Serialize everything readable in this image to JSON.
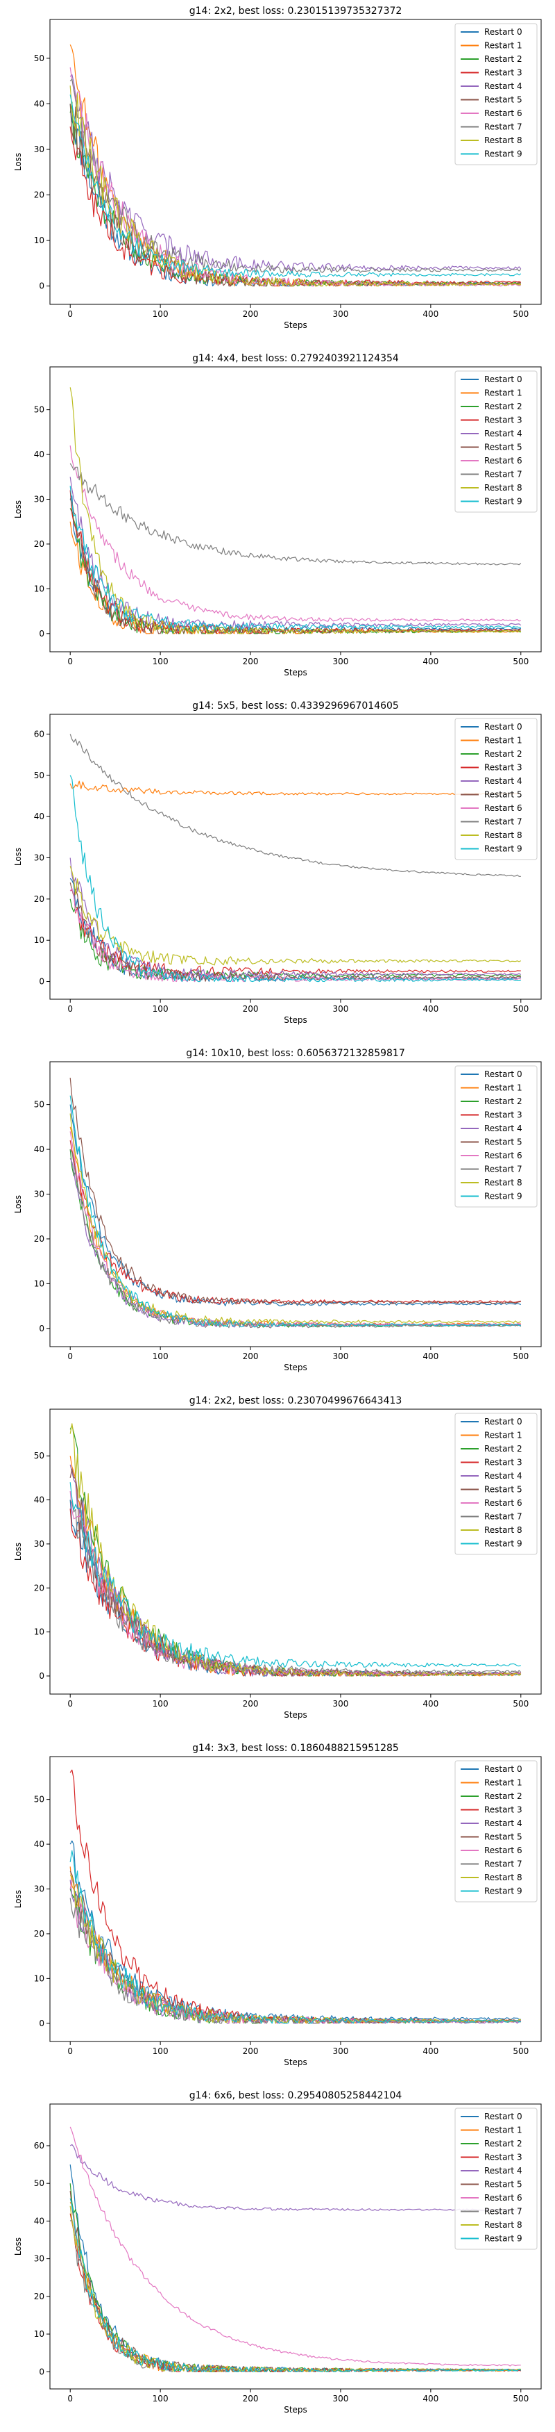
{
  "chart_data": [
    {
      "type": "line",
      "title": "g14: 2x2, best loss: 0.23015139735327372",
      "xlabel": "Steps",
      "ylabel": "Loss",
      "xlim": [
        0,
        500
      ],
      "ylim": [
        0,
        56
      ],
      "xticks": [
        0,
        100,
        200,
        300,
        400,
        500
      ],
      "yticks": [
        0,
        10,
        20,
        30,
        40,
        50
      ],
      "legend_position": "top-right",
      "series": [
        {
          "name": "Restart 0",
          "start": 40,
          "plateau": 0.5,
          "rate": 0.025,
          "noise": 4
        },
        {
          "name": "Restart 1",
          "start": 53,
          "plateau": 0.4,
          "rate": 0.022,
          "noise": 5
        },
        {
          "name": "Restart 2",
          "start": 38,
          "plateau": 0.6,
          "rate": 0.022,
          "noise": 4
        },
        {
          "name": "Restart 3",
          "start": 35,
          "plateau": 0.8,
          "rate": 0.025,
          "noise": 4
        },
        {
          "name": "Restart 4",
          "start": 46,
          "plateau": 4.0,
          "rate": 0.02,
          "noise": 5
        },
        {
          "name": "Restart 5",
          "start": 40,
          "plateau": 0.5,
          "rate": 0.022,
          "noise": 5
        },
        {
          "name": "Restart 6",
          "start": 48,
          "plateau": 0.3,
          "rate": 0.02,
          "noise": 5
        },
        {
          "name": "Restart 7",
          "start": 45,
          "plateau": 3.5,
          "rate": 0.022,
          "noise": 4
        },
        {
          "name": "Restart 8",
          "start": 44,
          "plateau": 0.4,
          "rate": 0.02,
          "noise": 5
        },
        {
          "name": "Restart 9",
          "start": 42,
          "plateau": 2.5,
          "rate": 0.025,
          "noise": 3
        }
      ]
    },
    {
      "type": "line",
      "title": "g14: 4x4, best loss: 0.2792403921124354",
      "xlabel": "Steps",
      "ylabel": "Loss",
      "xlim": [
        0,
        500
      ],
      "ylim": [
        0,
        57
      ],
      "xticks": [
        0,
        100,
        200,
        300,
        400,
        500
      ],
      "yticks": [
        0,
        10,
        20,
        30,
        40,
        50
      ],
      "legend_position": "top-right",
      "series": [
        {
          "name": "Restart 0",
          "start": 30,
          "plateau": 1.0,
          "rate": 0.04,
          "noise": 3
        },
        {
          "name": "Restart 1",
          "start": 25,
          "plateau": 0.5,
          "rate": 0.04,
          "noise": 3
        },
        {
          "name": "Restart 2",
          "start": 28,
          "plateau": 0.5,
          "rate": 0.04,
          "noise": 3
        },
        {
          "name": "Restart 3",
          "start": 32,
          "plateau": 0.8,
          "rate": 0.04,
          "noise": 3
        },
        {
          "name": "Restart 4",
          "start": 35,
          "plateau": 2.0,
          "rate": 0.035,
          "noise": 3
        },
        {
          "name": "Restart 5",
          "start": 30,
          "plateau": 0.6,
          "rate": 0.04,
          "noise": 3
        },
        {
          "name": "Restart 6",
          "start": 42,
          "plateau": 3.0,
          "rate": 0.02,
          "noise": 2
        },
        {
          "name": "Restart 7",
          "start": 38,
          "plateau": 15.5,
          "rate": 0.012,
          "noise": 2
        },
        {
          "name": "Restart 8",
          "start": 55,
          "plateau": 0.5,
          "rate": 0.04,
          "noise": 3
        },
        {
          "name": "Restart 9",
          "start": 33,
          "plateau": 1.5,
          "rate": 0.035,
          "noise": 3
        }
      ]
    },
    {
      "type": "line",
      "title": "g14: 5x5, best loss: 0.4339296967014605",
      "xlabel": "Steps",
      "ylabel": "Loss",
      "xlim": [
        0,
        500
      ],
      "ylim": [
        0,
        62
      ],
      "xticks": [
        0,
        100,
        200,
        300,
        400,
        500
      ],
      "yticks": [
        0,
        10,
        20,
        30,
        40,
        50,
        60
      ],
      "legend_position": "top-right",
      "series": [
        {
          "name": "Restart 0",
          "start": 25,
          "plateau": 0.8,
          "rate": 0.035,
          "noise": 3
        },
        {
          "name": "Restart 1",
          "start": 48,
          "plateau": 45.5,
          "rate": 0.015,
          "noise": 1
        },
        {
          "name": "Restart 2",
          "start": 20,
          "plateau": 1.5,
          "rate": 0.04,
          "noise": 3
        },
        {
          "name": "Restart 3",
          "start": 22,
          "plateau": 2.5,
          "rate": 0.035,
          "noise": 3
        },
        {
          "name": "Restart 4",
          "start": 30,
          "plateau": 1.8,
          "rate": 0.035,
          "noise": 3
        },
        {
          "name": "Restart 5",
          "start": 24,
          "plateau": 1.0,
          "rate": 0.035,
          "noise": 3
        },
        {
          "name": "Restart 6",
          "start": 22,
          "plateau": 0.6,
          "rate": 0.035,
          "noise": 3
        },
        {
          "name": "Restart 7",
          "start": 60,
          "plateau": 25.0,
          "rate": 0.008,
          "noise": 1
        },
        {
          "name": "Restart 8",
          "start": 28,
          "plateau": 5.0,
          "rate": 0.035,
          "noise": 3
        },
        {
          "name": "Restart 9",
          "start": 50,
          "plateau": 0.4,
          "rate": 0.035,
          "noise": 3
        }
      ]
    },
    {
      "type": "line",
      "title": "g14: 10x10, best loss: 0.6056372132859817",
      "xlabel": "Steps",
      "ylabel": "Loss",
      "xlim": [
        0,
        500
      ],
      "ylim": [
        0,
        57
      ],
      "xticks": [
        0,
        100,
        200,
        300,
        400,
        500
      ],
      "yticks": [
        0,
        10,
        20,
        30,
        40,
        50
      ],
      "legend_position": "top-right",
      "series": [
        {
          "name": "Restart 0",
          "start": 50,
          "plateau": 5.5,
          "rate": 0.03,
          "noise": 2
        },
        {
          "name": "Restart 1",
          "start": 45,
          "plateau": 1.0,
          "rate": 0.03,
          "noise": 2
        },
        {
          "name": "Restart 2",
          "start": 40,
          "plateau": 0.7,
          "rate": 0.03,
          "noise": 2
        },
        {
          "name": "Restart 3",
          "start": 42,
          "plateau": 6.0,
          "rate": 0.03,
          "noise": 2
        },
        {
          "name": "Restart 4",
          "start": 38,
          "plateau": 0.8,
          "rate": 0.03,
          "noise": 2
        },
        {
          "name": "Restart 5",
          "start": 56,
          "plateau": 5.8,
          "rate": 0.03,
          "noise": 2
        },
        {
          "name": "Restart 6",
          "start": 44,
          "plateau": 0.9,
          "rate": 0.03,
          "noise": 2
        },
        {
          "name": "Restart 7",
          "start": 40,
          "plateau": 0.6,
          "rate": 0.03,
          "noise": 2
        },
        {
          "name": "Restart 8",
          "start": 48,
          "plateau": 1.5,
          "rate": 0.03,
          "noise": 2
        },
        {
          "name": "Restart 9",
          "start": 52,
          "plateau": 0.8,
          "rate": 0.03,
          "noise": 2
        }
      ]
    },
    {
      "type": "line",
      "title": "g14: 2x2, best loss: 0.23070499676643413",
      "xlabel": "Steps",
      "ylabel": "Loss",
      "xlim": [
        0,
        500
      ],
      "ylim": [
        0,
        58
      ],
      "xticks": [
        0,
        100,
        200,
        300,
        400,
        500
      ],
      "yticks": [
        0,
        10,
        20,
        30,
        40,
        50
      ],
      "legend_position": "top-right",
      "series": [
        {
          "name": "Restart 0",
          "start": 40,
          "plateau": 0.5,
          "rate": 0.02,
          "noise": 5
        },
        {
          "name": "Restart 1",
          "start": 50,
          "plateau": 0.3,
          "rate": 0.02,
          "noise": 5
        },
        {
          "name": "Restart 2",
          "start": 56,
          "plateau": 0.4,
          "rate": 0.02,
          "noise": 5
        },
        {
          "name": "Restart 3",
          "start": 38,
          "plateau": 0.5,
          "rate": 0.02,
          "noise": 5
        },
        {
          "name": "Restart 4",
          "start": 48,
          "plateau": 0.4,
          "rate": 0.02,
          "noise": 5
        },
        {
          "name": "Restart 5",
          "start": 45,
          "plateau": 0.6,
          "rate": 0.02,
          "noise": 5
        },
        {
          "name": "Restart 6",
          "start": 42,
          "plateau": 0.5,
          "rate": 0.02,
          "noise": 5
        },
        {
          "name": "Restart 7",
          "start": 40,
          "plateau": 1.0,
          "rate": 0.02,
          "noise": 5
        },
        {
          "name": "Restart 8",
          "start": 55,
          "plateau": 0.4,
          "rate": 0.02,
          "noise": 5
        },
        {
          "name": "Restart 9",
          "start": 44,
          "plateau": 2.5,
          "rate": 0.02,
          "noise": 5
        }
      ]
    },
    {
      "type": "line",
      "title": "g14: 3x3, best loss: 0.1860488215951285",
      "xlabel": "Steps",
      "ylabel": "Loss",
      "xlim": [
        0,
        500
      ],
      "ylim": [
        0,
        57
      ],
      "xticks": [
        0,
        100,
        200,
        300,
        400,
        500
      ],
      "yticks": [
        0,
        10,
        20,
        30,
        40,
        50
      ],
      "legend_position": "top-right",
      "series": [
        {
          "name": "Restart 0",
          "start": 40,
          "plateau": 1.0,
          "rate": 0.022,
          "noise": 4
        },
        {
          "name": "Restart 1",
          "start": 35,
          "plateau": 0.5,
          "rate": 0.022,
          "noise": 4
        },
        {
          "name": "Restart 2",
          "start": 30,
          "plateau": 0.4,
          "rate": 0.022,
          "noise": 4
        },
        {
          "name": "Restart 3",
          "start": 56,
          "plateau": 0.5,
          "rate": 0.022,
          "noise": 4
        },
        {
          "name": "Restart 4",
          "start": 32,
          "plateau": 0.3,
          "rate": 0.022,
          "noise": 4
        },
        {
          "name": "Restart 5",
          "start": 34,
          "plateau": 0.6,
          "rate": 0.022,
          "noise": 4
        },
        {
          "name": "Restart 6",
          "start": 30,
          "plateau": 0.5,
          "rate": 0.022,
          "noise": 4
        },
        {
          "name": "Restart 7",
          "start": 28,
          "plateau": 0.4,
          "rate": 0.022,
          "noise": 4
        },
        {
          "name": "Restart 8",
          "start": 33,
          "plateau": 0.6,
          "rate": 0.022,
          "noise": 4
        },
        {
          "name": "Restart 9",
          "start": 36,
          "plateau": 0.5,
          "rate": 0.022,
          "noise": 4
        }
      ]
    },
    {
      "type": "line",
      "title": "g14: 6x6, best loss: 0.29540805258442104",
      "xlabel": "Steps",
      "ylabel": "Loss",
      "xlim": [
        0,
        500
      ],
      "ylim": [
        0,
        68
      ],
      "xticks": [
        0,
        100,
        200,
        300,
        400,
        500
      ],
      "yticks": [
        0,
        10,
        20,
        30,
        40,
        50,
        60
      ],
      "legend_position": "top-right",
      "series": [
        {
          "name": "Restart 0",
          "start": 55,
          "plateau": 0.5,
          "rate": 0.035,
          "noise": 3
        },
        {
          "name": "Restart 1",
          "start": 45,
          "plateau": 0.4,
          "rate": 0.035,
          "noise": 3
        },
        {
          "name": "Restart 2",
          "start": 50,
          "plateau": 0.5,
          "rate": 0.035,
          "noise": 3
        },
        {
          "name": "Restart 3",
          "start": 42,
          "plateau": 0.4,
          "rate": 0.035,
          "noise": 3
        },
        {
          "name": "Restart 4",
          "start": 60,
          "plateau": 43.0,
          "rate": 0.02,
          "noise": 1
        },
        {
          "name": "Restart 5",
          "start": 48,
          "plateau": 0.5,
          "rate": 0.035,
          "noise": 3
        },
        {
          "name": "Restart 6",
          "start": 65,
          "plateau": 1.5,
          "rate": 0.012,
          "noise": 1
        },
        {
          "name": "Restart 7",
          "start": 40,
          "plateau": 0.4,
          "rate": 0.035,
          "noise": 3
        },
        {
          "name": "Restart 8",
          "start": 44,
          "plateau": 0.5,
          "rate": 0.035,
          "noise": 3
        },
        {
          "name": "Restart 9",
          "start": 46,
          "plateau": 0.4,
          "rate": 0.035,
          "noise": 3
        }
      ]
    }
  ],
  "colors": [
    "#1f77b4",
    "#ff7f0e",
    "#2ca02c",
    "#d62728",
    "#9467bd",
    "#8c564b",
    "#e377c2",
    "#7f7f7f",
    "#bcbd22",
    "#17becf"
  ]
}
